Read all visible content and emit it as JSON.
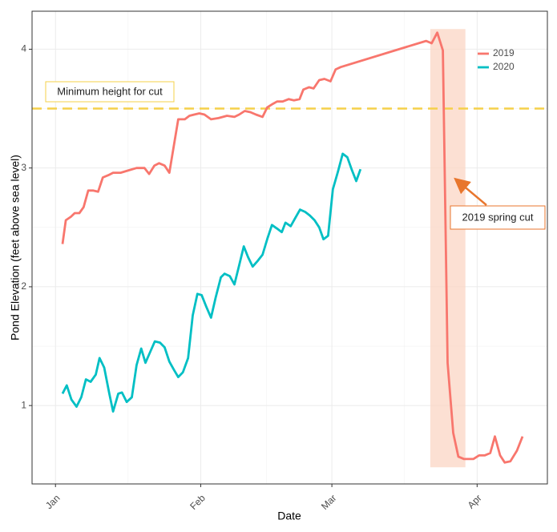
{
  "chart_data": {
    "type": "line",
    "x_label": "Date",
    "y_label": "Pond Elevation (feet above sea level)",
    "xlim": [
      -4,
      106
    ],
    "ylim": [
      0.34,
      4.32
    ],
    "xticks": [
      {
        "value": 1,
        "label": "Jan"
      },
      {
        "value": 32,
        "label": "Feb"
      },
      {
        "value": 60,
        "label": "Mar"
      },
      {
        "value": 91,
        "label": "Apr"
      }
    ],
    "yticks": [
      1,
      2,
      3,
      4
    ],
    "grid": true,
    "legend": "top-right",
    "series": [
      {
        "name": "2019",
        "color": "#f8766d",
        "x": [
          2.5,
          3.2,
          4.3,
          5.1,
          6.1,
          7.0,
          8.0,
          9.0,
          10.1,
          11.1,
          12.3,
          13.3,
          14.9,
          16.6,
          18.3,
          20.0,
          21.0,
          22.1,
          23.1,
          24.3,
          25.3,
          27.2,
          28.6,
          29.6,
          30.6,
          31.7,
          32.8,
          34.2,
          35.8,
          37.6,
          39.2,
          40.2,
          41.4,
          42.6,
          43.8,
          45.2,
          46.2,
          47.4,
          48.3,
          49.5,
          50.8,
          51.9,
          53.1,
          53.9,
          55.1,
          56.1,
          57.3,
          58.4,
          59.7,
          60.8,
          61.9,
          80.1,
          81.3,
          82.5,
          83.7,
          84.7,
          85.9,
          87.0,
          88.2,
          89.2,
          90.2,
          91.4,
          92.6,
          93.8,
          94.8,
          95.9,
          96.9,
          98.1,
          99.5,
          100.7
        ],
        "values": [
          2.36,
          2.56,
          2.59,
          2.62,
          2.62,
          2.67,
          2.81,
          2.81,
          2.8,
          2.92,
          2.94,
          2.96,
          2.96,
          2.98,
          3.0,
          3.0,
          2.95,
          3.02,
          3.04,
          3.02,
          2.96,
          3.41,
          3.41,
          3.44,
          3.45,
          3.46,
          3.45,
          3.41,
          3.42,
          3.44,
          3.43,
          3.45,
          3.48,
          3.47,
          3.45,
          3.43,
          3.51,
          3.54,
          3.56,
          3.56,
          3.58,
          3.57,
          3.58,
          3.66,
          3.68,
          3.67,
          3.74,
          3.75,
          3.73,
          3.83,
          3.85,
          4.07,
          4.05,
          4.14,
          3.99,
          1.36,
          0.77,
          0.57,
          0.55,
          0.55,
          0.55,
          0.58,
          0.58,
          0.6,
          0.74,
          0.58,
          0.52,
          0.53,
          0.62,
          0.74
        ]
      },
      {
        "name": "2020",
        "color": "#00bfc4",
        "x": [
          2.5,
          3.4,
          4.4,
          5.5,
          6.5,
          7.5,
          8.5,
          9.6,
          10.4,
          11.4,
          12.5,
          13.3,
          14.4,
          15.2,
          16.2,
          17.3,
          18.3,
          19.3,
          20.2,
          21.2,
          22.2,
          23.3,
          24.3,
          25.3,
          26.3,
          27.2,
          28.2,
          29.3,
          30.3,
          31.3,
          32.2,
          33.2,
          34.2,
          35.2,
          36.3,
          37.1,
          38.2,
          39.2,
          40.2,
          41.2,
          42.1,
          43.1,
          44.2,
          45.2,
          46.2,
          47.2,
          48.3,
          49.3,
          50.1,
          51.2,
          52.2,
          53.2,
          54.3,
          55.3,
          56.3,
          57.3,
          58.2,
          59.2,
          60.2,
          61.3,
          62.3,
          63.3,
          64.2,
          65.2,
          66.1
        ],
        "values": [
          1.1,
          1.17,
          1.05,
          0.99,
          1.07,
          1.22,
          1.2,
          1.26,
          1.4,
          1.32,
          1.1,
          0.95,
          1.1,
          1.11,
          1.03,
          1.07,
          1.34,
          1.48,
          1.36,
          1.45,
          1.54,
          1.53,
          1.49,
          1.37,
          1.3,
          1.24,
          1.28,
          1.4,
          1.76,
          1.94,
          1.93,
          1.83,
          1.74,
          1.91,
          2.08,
          2.11,
          2.09,
          2.02,
          2.18,
          2.34,
          2.25,
          2.17,
          2.22,
          2.27,
          2.4,
          2.52,
          2.49,
          2.46,
          2.54,
          2.51,
          2.58,
          2.65,
          2.63,
          2.6,
          2.56,
          2.5,
          2.4,
          2.43,
          2.82,
          2.97,
          3.12,
          3.09,
          2.99,
          2.89,
          2.99
        ]
      }
    ],
    "reference_line": {
      "value": 3.5,
      "label": "Minimum height for cut",
      "color": "#f5d04a"
    },
    "highlight": {
      "x": [
        81,
        88.5
      ],
      "ylim": [
        0.48,
        4.17
      ],
      "label": "2019 spring cut",
      "color": "#fbd5c4",
      "arrow_color": "#e8762d"
    }
  }
}
